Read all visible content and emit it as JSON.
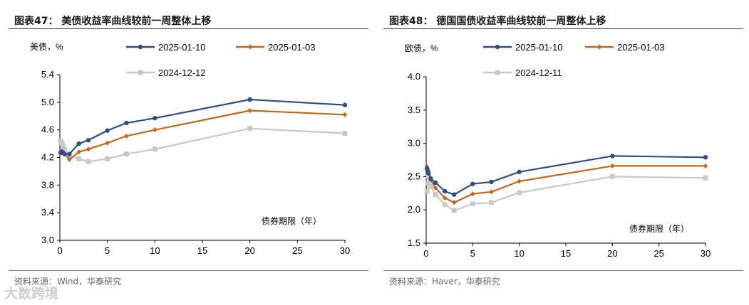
{
  "watermark": "大数跨境",
  "chart_data": [
    {
      "type": "line",
      "title": "图表47：  美债收益率曲线较前一周整体上移",
      "ylabel": "美债，%",
      "xlabel": "债券期限（年）",
      "ylim": [
        3.0,
        5.4
      ],
      "yticks": [
        3.0,
        3.4,
        3.8,
        4.2,
        4.6,
        5.0,
        5.4
      ],
      "ytick_labels": [
        "3.0",
        "3.4",
        "3.8",
        "4.2",
        "4.6",
        "5.0",
        "5.4"
      ],
      "xlim": [
        0,
        30
      ],
      "xticks": [
        0,
        5,
        10,
        15,
        20,
        25,
        30
      ],
      "xtick_labels": [
        "0",
        "5",
        "10",
        "15",
        "20",
        "25",
        "30"
      ],
      "source": "资料来源：Wind，华泰研究",
      "x": [
        0.083,
        0.167,
        0.25,
        0.333,
        0.5,
        1,
        2,
        3,
        5,
        7,
        10,
        20,
        30
      ],
      "series": [
        {
          "name": "2025-01-10",
          "color": "#2e4d86",
          "marker": "circle",
          "values": [
            4.27,
            4.27,
            4.28,
            4.27,
            4.25,
            4.25,
            4.4,
            4.45,
            4.59,
            4.7,
            4.77,
            5.04,
            4.96
          ]
        },
        {
          "name": "2025-01-03",
          "color": "#c0681c",
          "marker": "diamond",
          "values": [
            4.29,
            4.28,
            4.29,
            4.27,
            4.25,
            4.17,
            4.28,
            4.32,
            4.41,
            4.51,
            4.6,
            4.88,
            4.82
          ]
        },
        {
          "name": "2024-12-12",
          "color": "#c8c8c8",
          "marker": "square",
          "values": [
            4.44,
            4.42,
            4.4,
            4.36,
            4.32,
            4.23,
            4.18,
            4.14,
            4.18,
            4.25,
            4.32,
            4.62,
            4.55
          ]
        }
      ]
    },
    {
      "type": "line",
      "title": "图表48：  德国国债收益率曲线较前一周整体上移",
      "ylabel": "欧债，%",
      "xlabel": "债券期限（年）",
      "ylim": [
        1.5,
        4.0
      ],
      "yticks": [
        1.5,
        2.0,
        2.5,
        3.0,
        3.5,
        4.0
      ],
      "ytick_labels": [
        "1.5",
        "2.0",
        "2.5",
        "3.0",
        "3.5",
        "4.0"
      ],
      "xlim": [
        0,
        30
      ],
      "xticks": [
        0,
        5,
        10,
        15,
        20,
        25,
        30
      ],
      "xtick_labels": [
        "0",
        "5",
        "10",
        "15",
        "20",
        "25",
        "30"
      ],
      "source": "资料来源：Haver，华泰研究",
      "x": [
        0.083,
        0.167,
        0.25,
        0.5,
        1,
        2,
        3,
        5,
        7,
        10,
        20,
        30
      ],
      "series": [
        {
          "name": "2025-01-10",
          "color": "#2e4d86",
          "marker": "circle",
          "values": [
            2.62,
            2.58,
            2.55,
            2.47,
            2.41,
            2.28,
            2.23,
            2.39,
            2.42,
            2.57,
            2.81,
            2.79
          ]
        },
        {
          "name": "2025-01-03",
          "color": "#c0681c",
          "marker": "diamond",
          "values": [
            2.65,
            2.62,
            2.58,
            2.45,
            2.33,
            2.18,
            2.11,
            2.24,
            2.27,
            2.43,
            2.66,
            2.66
          ]
        },
        {
          "name": "2024-12-11",
          "color": "#c8c8c8",
          "marker": "square",
          "values": [
            2.28,
            2.4,
            2.5,
            2.35,
            2.23,
            2.08,
            1.99,
            2.09,
            2.11,
            2.26,
            2.5,
            2.48
          ]
        }
      ]
    }
  ]
}
